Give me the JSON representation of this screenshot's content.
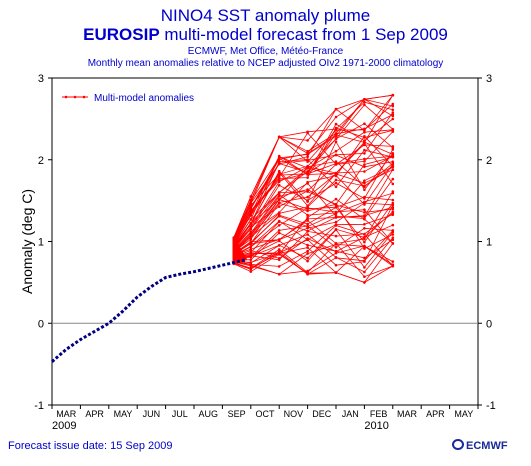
{
  "header": {
    "title_line1": "NINO4 SST anomaly plume",
    "title_line2_bold": "EUROSIP",
    "title_line2_rest": " multi-model forecast from 1 Sep 2009",
    "title_line3": "ECMWF, Met Office, Météo-France",
    "title_line4": "Monthly mean anomalies relative to NCEP adjusted OIv2 1971-2000 climatology"
  },
  "footer": {
    "issue_date": "Forecast issue date: 15 Sep 2009",
    "logo_text": "ECMWF"
  },
  "colors": {
    "observed": "#000080",
    "forecast": "#ff0000",
    "text": "#0000cc",
    "axis": "#000000"
  },
  "chart_data": {
    "type": "line",
    "title": "NINO4 SST anomaly plume",
    "ylabel": "Anomaly (deg C)",
    "xlabel": "",
    "ylim": [
      -1,
      3
    ],
    "yticks": [
      "-1",
      "0",
      "1",
      "2",
      "3"
    ],
    "xlim": [
      0,
      15
    ],
    "x_tick_labels": [
      "MAR",
      "APR",
      "MAY",
      "JUN",
      "JUL",
      "AUG",
      "SEP",
      "OCT",
      "NOV",
      "DEC",
      "JAN",
      "FEB",
      "MAR",
      "APR",
      "MAY"
    ],
    "year_labels": [
      {
        "label": "2009",
        "month_index": 0
      },
      {
        "label": "2010",
        "month_index": 11
      }
    ],
    "grid": false,
    "zero_line": true,
    "legend": {
      "position": "top-left",
      "entries": [
        "Multi-model anomalies"
      ]
    },
    "observed": {
      "x": [
        0,
        0.5,
        1,
        1.5,
        2,
        2.5,
        3,
        3.5,
        4,
        4.5,
        5,
        5.5,
        6,
        6.5,
        6.85
      ],
      "y": [
        -0.47,
        -0.32,
        -0.2,
        -0.1,
        0.0,
        0.15,
        0.32,
        0.45,
        0.56,
        0.6,
        0.63,
        0.67,
        0.71,
        0.75,
        0.78
      ]
    },
    "forecast": {
      "start": {
        "x": 6.85,
        "y": 0.78
      },
      "month_x": [
        7,
        8,
        9,
        10,
        11,
        12
      ],
      "n_members": 61,
      "members_lo": [
        0.63,
        0.6,
        0.6,
        0.62,
        0.5,
        0.7
      ],
      "members_hi": [
        1.55,
        2.28,
        2.42,
        2.62,
        2.74,
        2.79
      ],
      "seed": 20090915
    }
  }
}
